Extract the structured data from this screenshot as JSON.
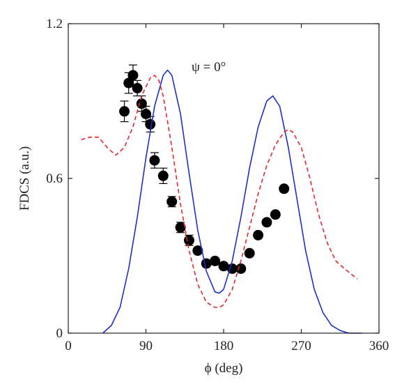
{
  "chart_data": {
    "type": "scatter",
    "title": "",
    "xlabel": "ϕ (deg)",
    "ylabel": "FDCS (a.u.)",
    "annotation": "ψ = 0°",
    "xlim": [
      0,
      360
    ],
    "ylim": [
      0,
      1.2
    ],
    "xticks": [
      0,
      90,
      180,
      270,
      360
    ],
    "xtick_labels": [
      "0",
      "90",
      "180",
      "270",
      "360"
    ],
    "yticks": [
      0,
      0.6,
      1.2
    ],
    "ytick_labels": [
      "0",
      "0.6",
      "1.2"
    ],
    "grid": false,
    "legend": "none",
    "series": [
      {
        "kind": "points-with-errorbars",
        "color": "#000000",
        "points": [
          {
            "x": 65,
            "y": 0.86,
            "err": 0.04
          },
          {
            "x": 70,
            "y": 0.97,
            "err": 0.04
          },
          {
            "x": 75,
            "y": 1.0,
            "err": 0.04
          },
          {
            "x": 80,
            "y": 0.95,
            "err": 0.03
          },
          {
            "x": 85,
            "y": 0.89,
            "err": 0.03
          },
          {
            "x": 90,
            "y": 0.85,
            "err": 0.03
          },
          {
            "x": 95,
            "y": 0.81,
            "err": 0.03
          },
          {
            "x": 100,
            "y": 0.67,
            "err": 0.03
          },
          {
            "x": 110,
            "y": 0.61,
            "err": 0.03
          },
          {
            "x": 120,
            "y": 0.51,
            "err": 0.02
          },
          {
            "x": 130,
            "y": 0.41,
            "err": 0.02
          },
          {
            "x": 140,
            "y": 0.36,
            "err": 0.02
          },
          {
            "x": 150,
            "y": 0.32,
            "err": 0.0
          },
          {
            "x": 160,
            "y": 0.27,
            "err": 0.0
          },
          {
            "x": 170,
            "y": 0.28,
            "err": 0.0
          },
          {
            "x": 180,
            "y": 0.26,
            "err": 0.0
          },
          {
            "x": 190,
            "y": 0.25,
            "err": 0.0
          },
          {
            "x": 200,
            "y": 0.25,
            "err": 0.0
          },
          {
            "x": 210,
            "y": 0.31,
            "err": 0.0
          },
          {
            "x": 220,
            "y": 0.38,
            "err": 0.0
          },
          {
            "x": 230,
            "y": 0.43,
            "err": 0.0
          },
          {
            "x": 240,
            "y": 0.46,
            "err": 0.0
          },
          {
            "x": 250,
            "y": 0.56,
            "err": 0.0
          }
        ]
      },
      {
        "kind": "line",
        "style": "solid",
        "color": "#1a2fc8",
        "x": [
          40,
          50,
          60,
          70,
          80,
          90,
          100,
          110,
          115,
          120,
          130,
          140,
          150,
          160,
          170,
          175,
          180,
          190,
          200,
          210,
          220,
          230,
          237,
          245,
          255,
          265,
          275,
          285,
          295,
          305,
          315,
          325,
          335,
          340
        ],
        "y": [
          0.0,
          0.03,
          0.1,
          0.25,
          0.45,
          0.68,
          0.88,
          1.0,
          1.02,
          1.0,
          0.85,
          0.62,
          0.4,
          0.24,
          0.16,
          0.155,
          0.17,
          0.28,
          0.45,
          0.64,
          0.8,
          0.9,
          0.92,
          0.88,
          0.72,
          0.52,
          0.32,
          0.17,
          0.08,
          0.03,
          0.01,
          0.0,
          0.0,
          0.0
        ]
      },
      {
        "kind": "line",
        "style": "dashed",
        "color": "#e8242a",
        "x": [
          15,
          25,
          35,
          45,
          55,
          65,
          75,
          85,
          95,
          100,
          105,
          110,
          120,
          130,
          140,
          150,
          160,
          170,
          175,
          180,
          190,
          200,
          210,
          220,
          230,
          240,
          250,
          255,
          260,
          270,
          280,
          290,
          300,
          310,
          320,
          335
        ],
        "y": [
          0.75,
          0.76,
          0.76,
          0.72,
          0.69,
          0.72,
          0.8,
          0.92,
          0.99,
          1.0,
          0.98,
          0.92,
          0.72,
          0.5,
          0.32,
          0.19,
          0.12,
          0.1,
          0.1,
          0.11,
          0.17,
          0.28,
          0.41,
          0.54,
          0.65,
          0.73,
          0.78,
          0.79,
          0.78,
          0.72,
          0.6,
          0.46,
          0.35,
          0.28,
          0.25,
          0.21
        ]
      }
    ]
  }
}
